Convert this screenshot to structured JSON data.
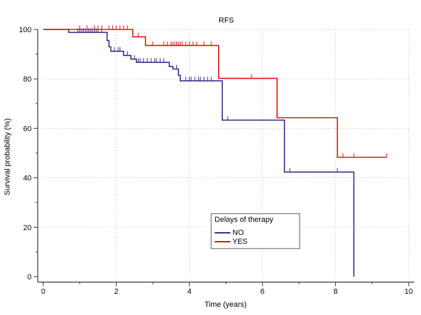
{
  "chart_data": {
    "type": "line",
    "subtype": "kaplan-meier",
    "title": "RFS",
    "xlabel": "Time (years)",
    "ylabel": "Survival probability (%)",
    "xlim": [
      0,
      10
    ],
    "ylim": [
      0,
      100
    ],
    "xticks": [
      "0",
      "2",
      "4",
      "6",
      "8",
      "10"
    ],
    "yticks": [
      "0",
      "20",
      "40",
      "60",
      "80",
      "100"
    ],
    "grid": "dotted",
    "legend": {
      "title": "Delays of therapy",
      "position": "bottom-center",
      "entries": [
        "NO",
        "YES"
      ]
    },
    "series": [
      {
        "name": "NO",
        "color": "#2e2e8a",
        "steps": [
          [
            0,
            100
          ],
          [
            0.7,
            98.8
          ],
          [
            1.75,
            95.5
          ],
          [
            1.8,
            93
          ],
          [
            1.85,
            91.2
          ],
          [
            2.2,
            89.5
          ],
          [
            2.4,
            88
          ],
          [
            2.55,
            86.7
          ],
          [
            3.45,
            85
          ],
          [
            3.55,
            84
          ],
          [
            3.7,
            81.5
          ],
          [
            3.75,
            79.2
          ],
          [
            4.9,
            63.3
          ],
          [
            6.6,
            42.3
          ],
          [
            8.5,
            0
          ]
        ],
        "end": 8.5,
        "censored": [
          0.95,
          1.0,
          1.05,
          1.1,
          1.15,
          1.2,
          1.25,
          1.3,
          1.35,
          1.4,
          1.45,
          1.5,
          1.6,
          1.95,
          2.05,
          2.1,
          2.3,
          2.5,
          2.6,
          2.65,
          2.75,
          2.85,
          2.95,
          3.05,
          3.1,
          3.2,
          3.3,
          3.65,
          3.9,
          4.0,
          4.05,
          4.15,
          4.25,
          4.3,
          4.4,
          4.5,
          4.6,
          5.05,
          6.75,
          8.05
        ]
      },
      {
        "name": "YES",
        "color": "#dd1111",
        "steps": [
          [
            0,
            100
          ],
          [
            2.45,
            97
          ],
          [
            2.8,
            93.5
          ],
          [
            4.8,
            80.2
          ],
          [
            6.4,
            64.3
          ],
          [
            8.05,
            48.3
          ]
        ],
        "end": 9.4,
        "censored": [
          1.0,
          1.2,
          1.4,
          1.5,
          1.6,
          1.8,
          1.9,
          2.0,
          2.1,
          2.2,
          2.3,
          2.6,
          3.0,
          3.3,
          3.4,
          3.5,
          3.55,
          3.6,
          3.65,
          3.7,
          3.75,
          3.8,
          3.9,
          4.0,
          4.1,
          4.2,
          4.4,
          4.6,
          5.7,
          8.2,
          8.5,
          9.4
        ]
      }
    ]
  }
}
